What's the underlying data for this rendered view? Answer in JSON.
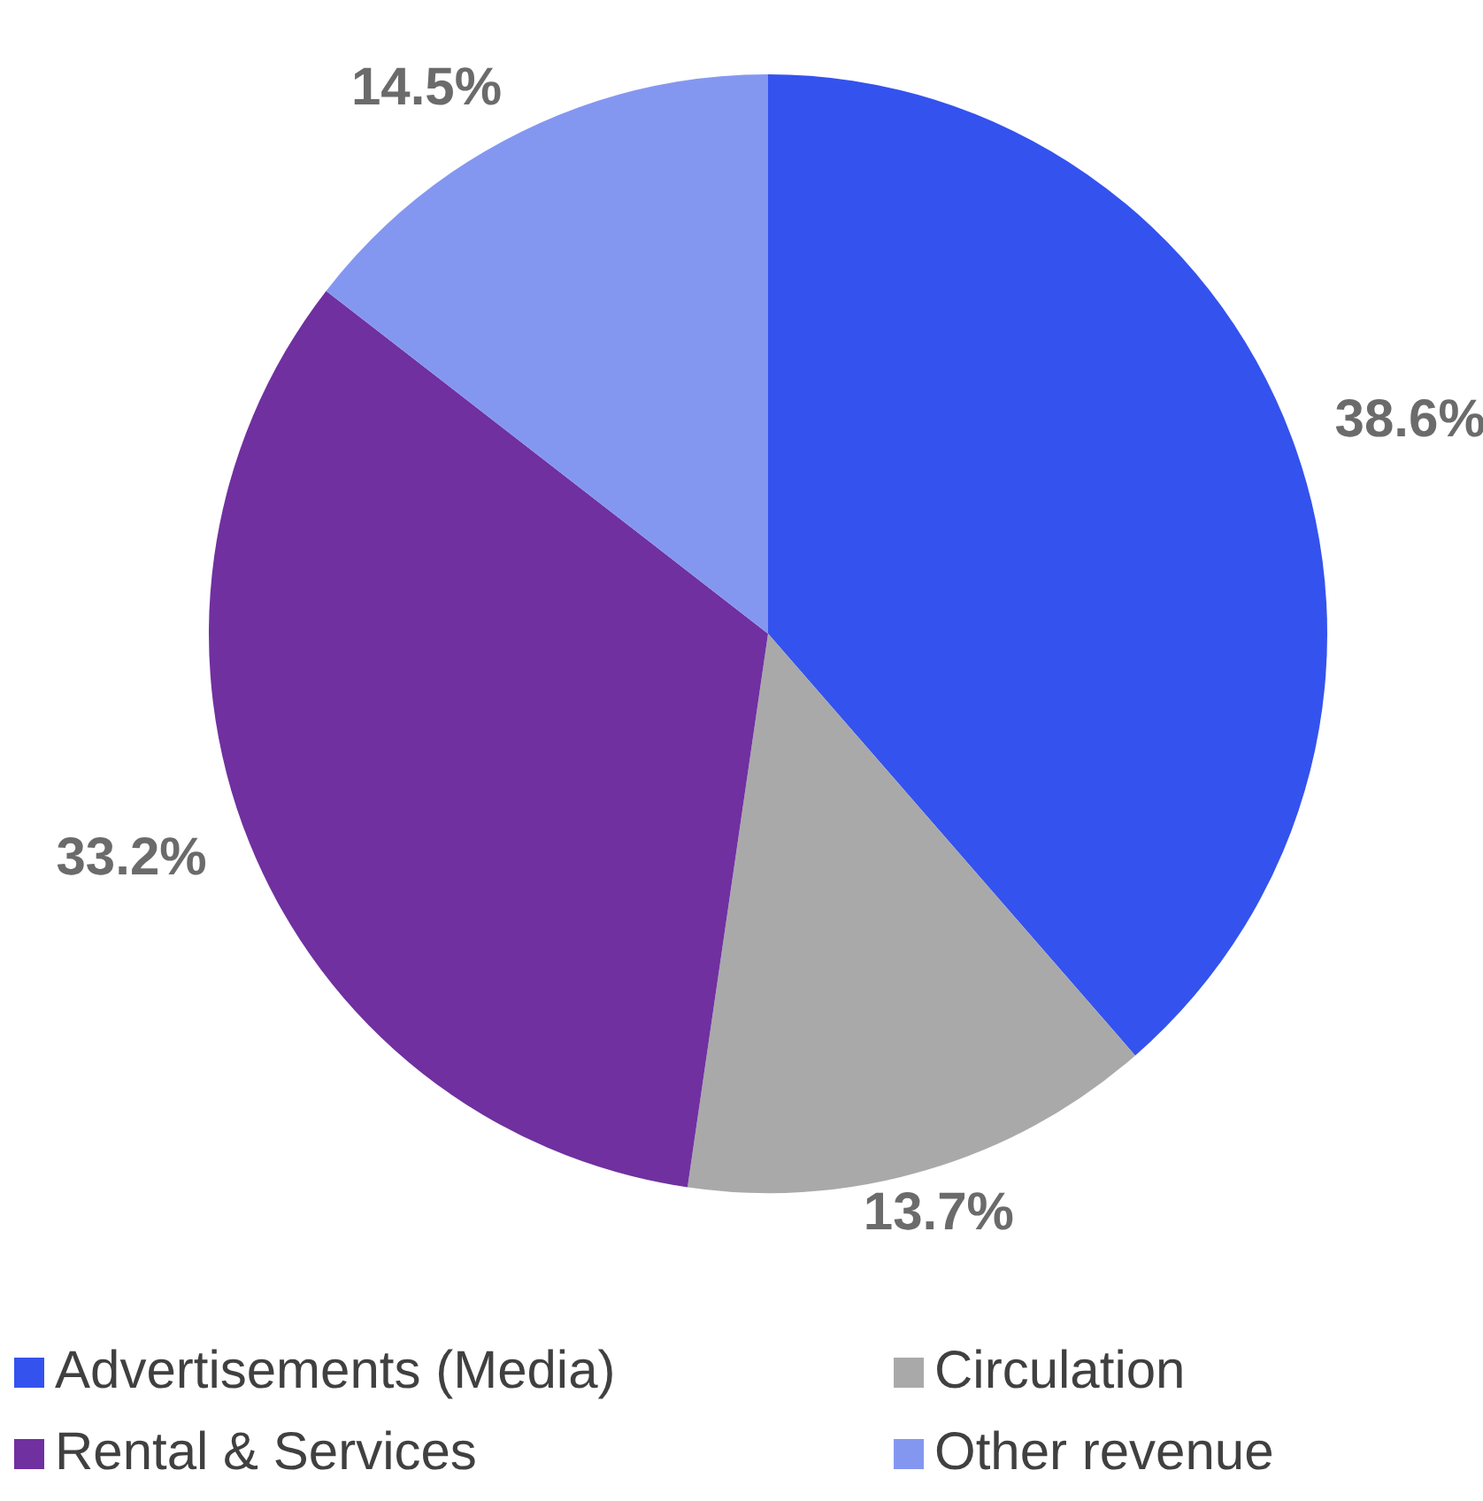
{
  "chart_data": {
    "type": "pie",
    "categories": [
      "Advertisements (Media)",
      "Circulation",
      "Rental & Services",
      "Other revenue"
    ],
    "values": [
      38.6,
      13.7,
      33.2,
      14.5
    ],
    "colors": [
      "#3452ee",
      "#a9a9a9",
      "#7030a0",
      "#8497f0"
    ],
    "value_labels": [
      "38.6%",
      "13.7%",
      "33.2%",
      "14.5%"
    ],
    "legend": "bottom"
  }
}
